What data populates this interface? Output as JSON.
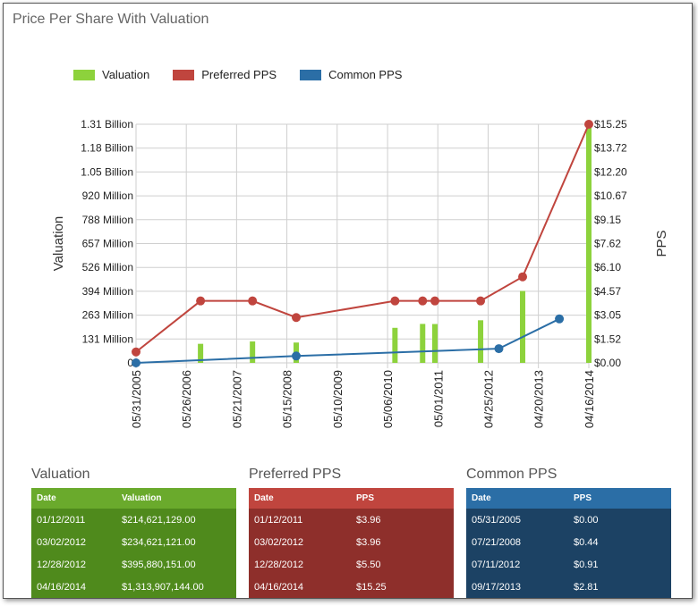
{
  "page": {
    "title": "Price Per Share With Valuation"
  },
  "legend": [
    {
      "label": "Valuation",
      "color": "#8dd23c"
    },
    {
      "label": "Preferred PPS",
      "color": "#c0453e"
    },
    {
      "label": "Common PPS",
      "color": "#2b6ea6"
    }
  ],
  "chart_data": {
    "type": "bar+line",
    "title": "Price Per Share With Valuation",
    "ylabel_left": "Valuation",
    "ylabel_right": "PPS",
    "left_ticks": [
      "0",
      "131 Million",
      "263 Million",
      "394 Million",
      "526 Million",
      "657 Million",
      "788 Million",
      "920 Million",
      "1.05 Billion",
      "1.18 Billion",
      "1.31 Billion"
    ],
    "right_ticks": [
      "$0.00",
      "$1.52",
      "$3.05",
      "$4.57",
      "$6.10",
      "$7.62",
      "$9.15",
      "$10.67",
      "$12.20",
      "$13.72",
      "$15.25"
    ],
    "x_ticks": [
      "05/31/2005",
      "05/26/2006",
      "05/21/2007",
      "05/15/2008",
      "05/10/2009",
      "05/06/2010",
      "05/01/2011",
      "04/25/2012",
      "04/20/2013",
      "04/16/2014"
    ],
    "x_range": [
      "05/31/2005",
      "04/16/2014"
    ],
    "ylim_left": [
      0,
      1313907144
    ],
    "ylim_right": [
      0,
      15.25
    ],
    "grid": true,
    "valuation": [
      {
        "date": "09/05/2006",
        "value": 105000000
      },
      {
        "date": "09/12/2007",
        "value": 118000000
      },
      {
        "date": "07/21/2008",
        "value": 112000000
      },
      {
        "date": "06/28/2010",
        "value": 193000000
      },
      {
        "date": "01/12/2011",
        "value": 214621129
      },
      {
        "date": "04/10/2011",
        "value": 214000000
      },
      {
        "date": "03/02/2012",
        "value": 234621121
      },
      {
        "date": "12/28/2012",
        "value": 395880151
      },
      {
        "date": "04/16/2014",
        "value": 1313907144
      }
    ],
    "preferred_pps": [
      {
        "date": "05/31/2005",
        "value": 0.7
      },
      {
        "date": "09/05/2006",
        "value": 3.96
      },
      {
        "date": "09/12/2007",
        "value": 3.96
      },
      {
        "date": "07/21/2008",
        "value": 2.9
      },
      {
        "date": "06/28/2010",
        "value": 3.96
      },
      {
        "date": "01/12/2011",
        "value": 3.96
      },
      {
        "date": "04/10/2011",
        "value": 3.96
      },
      {
        "date": "03/02/2012",
        "value": 3.96
      },
      {
        "date": "12/28/2012",
        "value": 5.5
      },
      {
        "date": "04/16/2014",
        "value": 15.25
      }
    ],
    "common_pps": [
      {
        "date": "05/31/2005",
        "value": 0.0
      },
      {
        "date": "07/21/2008",
        "value": 0.44
      },
      {
        "date": "07/11/2012",
        "value": 0.91
      },
      {
        "date": "09/17/2013",
        "value": 2.81
      }
    ]
  },
  "tables": [
    {
      "title": "Valuation",
      "header_color": "#6aaa2c",
      "body_color": "#4f8a1c",
      "columns": [
        "Date",
        "Valuation"
      ],
      "rows": [
        [
          "01/12/2011",
          "$214,621,129.00"
        ],
        [
          "03/02/2012",
          "$234,621,121.00"
        ],
        [
          "12/28/2012",
          "$395,880,151.00"
        ],
        [
          "04/16/2014",
          "$1,313,907,144.00"
        ]
      ]
    },
    {
      "title": "Preferred PPS",
      "header_color": "#c0453e",
      "body_color": "#8e2f2b",
      "columns": [
        "Date",
        "PPS"
      ],
      "rows": [
        [
          "01/12/2011",
          "$3.96"
        ],
        [
          "03/02/2012",
          "$3.96"
        ],
        [
          "12/28/2012",
          "$5.50"
        ],
        [
          "04/16/2014",
          "$15.25"
        ]
      ]
    },
    {
      "title": "Common PPS",
      "header_color": "#2b6ea6",
      "body_color": "#1c4264",
      "columns": [
        "Date",
        "PPS"
      ],
      "rows": [
        [
          "05/31/2005",
          "$0.00"
        ],
        [
          "07/21/2008",
          "$0.44"
        ],
        [
          "07/11/2012",
          "$0.91"
        ],
        [
          "09/17/2013",
          "$2.81"
        ]
      ]
    }
  ]
}
